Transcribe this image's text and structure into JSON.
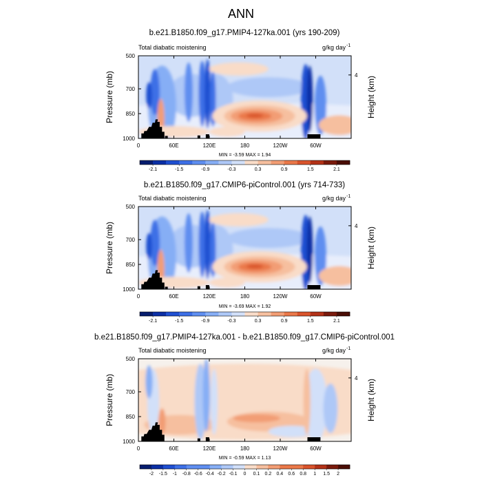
{
  "figure": {
    "title": "ANN"
  },
  "panels": [
    {
      "title": "b.e21.B1850.f09_g17.PMIP4-127ka.001 (yrs 190-209)",
      "left_label": "Total diabatic moistening",
      "right_label": "g/kg day",
      "units_exp": "-1",
      "stats": "MIN =  -3.59  MAX =  1.94"
    },
    {
      "title": "b.e21.B1850.f09_g17.CMIP6-piControl.001 (yrs 714-733)",
      "left_label": "Total diabatic moistening",
      "right_label": "g/kg day",
      "units_exp": "-1",
      "stats": "MIN =  -3.69  MAX =  1.92"
    },
    {
      "title": "b.e21.B1850.f09_g17.PMIP4-127ka.001 - b.e21.B1850.f09_g17.CMIP6-piControl.001",
      "left_label": "Total diabatic moistening",
      "right_label": "g/kg day",
      "units_exp": "-1",
      "stats": "MIN =  -0.59  MAX =  1.13"
    }
  ],
  "chart_data": [
    {
      "type": "heatmap",
      "title": "b.e21.B1850.f09_g17.PMIP4-127ka.001 (yrs 190-209)",
      "subtitle_left": "Total diabatic moistening",
      "units": "g/kg day-1",
      "ylabel": "Pressure (mb)",
      "ylabel_right": "Height (km)",
      "x_ticks": [
        "0",
        "60E",
        "120E",
        "180",
        "120W",
        "60W"
      ],
      "x_tick_values": [
        0,
        60,
        120,
        180,
        240,
        300
      ],
      "xlim": [
        0,
        360
      ],
      "y_ticks": [
        "500",
        "700",
        "850",
        "1000"
      ],
      "y_tick_values": [
        500,
        700,
        850,
        1000
      ],
      "ylim": [
        1000,
        500
      ],
      "right_y_ticks": [
        "4"
      ],
      "right_y_tick_pressure": [
        616
      ],
      "levels": [
        -2.1,
        -1.8,
        -1.5,
        -1.2,
        -0.9,
        -0.6,
        -0.3,
        0,
        0.3,
        0.6,
        0.9,
        1.2,
        1.5,
        1.8,
        2.1
      ],
      "colorbar_labels": [
        "-2.1",
        "-1.5",
        "-0.9",
        "-0.3",
        "0.3",
        "0.9",
        "1.5",
        "2.1"
      ],
      "colorbar_label_values": [
        -2.1,
        -1.5,
        -0.9,
        -0.3,
        0.3,
        0.9,
        1.5,
        2.1
      ],
      "min": -3.59,
      "max": 1.94
    },
    {
      "type": "heatmap",
      "title": "b.e21.B1850.f09_g17.CMIP6-piControl.001 (yrs 714-733)",
      "subtitle_left": "Total diabatic moistening",
      "units": "g/kg day-1",
      "ylabel": "Pressure (mb)",
      "ylabel_right": "Height (km)",
      "x_ticks": [
        "0",
        "60E",
        "120E",
        "180",
        "120W",
        "60W"
      ],
      "x_tick_values": [
        0,
        60,
        120,
        180,
        240,
        300
      ],
      "xlim": [
        0,
        360
      ],
      "y_ticks": [
        "500",
        "700",
        "850",
        "1000"
      ],
      "y_tick_values": [
        500,
        700,
        850,
        1000
      ],
      "ylim": [
        1000,
        500
      ],
      "right_y_ticks": [
        "4"
      ],
      "right_y_tick_pressure": [
        616
      ],
      "levels": [
        -2.1,
        -1.8,
        -1.5,
        -1.2,
        -0.9,
        -0.6,
        -0.3,
        0,
        0.3,
        0.6,
        0.9,
        1.2,
        1.5,
        1.8,
        2.1
      ],
      "colorbar_labels": [
        "-2.1",
        "-1.5",
        "-0.9",
        "-0.3",
        "0.3",
        "0.9",
        "1.5",
        "2.1"
      ],
      "colorbar_label_values": [
        -2.1,
        -1.5,
        -0.9,
        -0.3,
        0.3,
        0.9,
        1.5,
        2.1
      ],
      "min": -3.69,
      "max": 1.92
    },
    {
      "type": "heatmap",
      "title": "b.e21.B1850.f09_g17.PMIP4-127ka.001 - b.e21.B1850.f09_g17.CMIP6-piControl.001",
      "subtitle_left": "Total diabatic moistening",
      "units": "g/kg day-1",
      "ylabel": "Pressure (mb)",
      "ylabel_right": "Height (km)",
      "x_ticks": [
        "0",
        "60E",
        "120E",
        "180",
        "120W",
        "60W"
      ],
      "x_tick_values": [
        0,
        60,
        120,
        180,
        240,
        300
      ],
      "xlim": [
        0,
        360
      ],
      "y_ticks": [
        "500",
        "700",
        "850",
        "1000"
      ],
      "y_tick_values": [
        500,
        700,
        850,
        1000
      ],
      "ylim": [
        1000,
        500
      ],
      "right_y_ticks": [
        "4"
      ],
      "right_y_tick_pressure": [
        616
      ],
      "levels": [
        -2,
        -1.5,
        -1,
        -0.8,
        -0.6,
        -0.4,
        -0.2,
        -0.1,
        0,
        0.1,
        0.2,
        0.4,
        0.6,
        0.8,
        1,
        1.5,
        2
      ],
      "colorbar_labels": [
        "-2",
        "-1.5",
        "-1",
        "-0.8",
        "-0.6",
        "-0.4",
        "-0.2",
        "-0.1",
        "0",
        "0.1",
        "0.2",
        "0.4",
        "0.6",
        "0.8",
        "1",
        "1.5",
        "2"
      ],
      "colorbar_label_values": [
        -2,
        -1.5,
        -1,
        -0.8,
        -0.6,
        -0.4,
        -0.2,
        -0.1,
        0,
        0.1,
        0.2,
        0.4,
        0.6,
        0.8,
        1,
        1.5,
        2
      ],
      "min": -0.59,
      "max": 1.13
    }
  ]
}
